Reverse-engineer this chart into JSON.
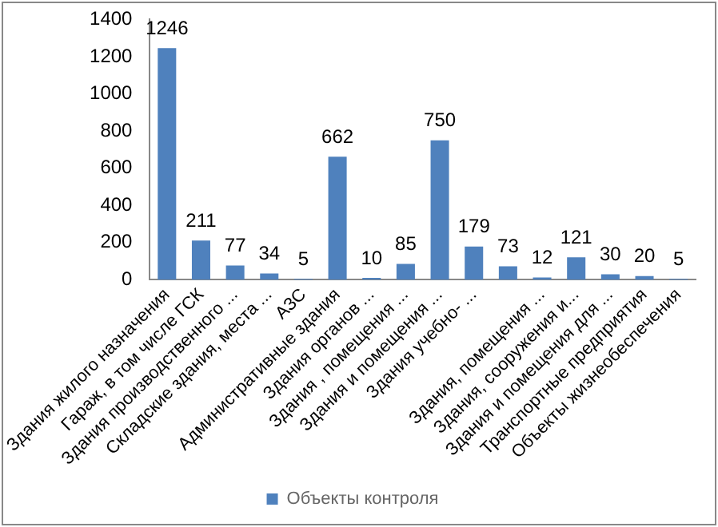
{
  "chart_data": {
    "type": "bar",
    "categories": [
      "Здания жилого назначения",
      "Гараж, в том числе ГСК",
      "Здания производственного ...",
      "Складские здания, места ...",
      "АЗС",
      "Административные здания",
      "Здания органов ...",
      "Здания , помещения ...",
      "Здания и помещения ...",
      "Здания учебно- ...",
      null,
      "Здания, помещения ...",
      "Здания, сооружения и...",
      "Здания и помещения для ...",
      "Транспортные предприятия",
      "Объекты жизнеобеспечения"
    ],
    "series": [
      {
        "name": "Объекты контроля",
        "color": "#4f81bd",
        "values": [
          1246,
          211,
          77,
          34,
          5,
          662,
          10,
          85,
          750,
          179,
          73,
          12,
          121,
          30,
          20,
          5
        ]
      }
    ],
    "ylim": [
      0,
      1400
    ],
    "yticks": [
      0,
      200,
      400,
      600,
      800,
      1000,
      1200,
      1400
    ],
    "grid": false,
    "legend": "bottom",
    "data_labels": true
  }
}
